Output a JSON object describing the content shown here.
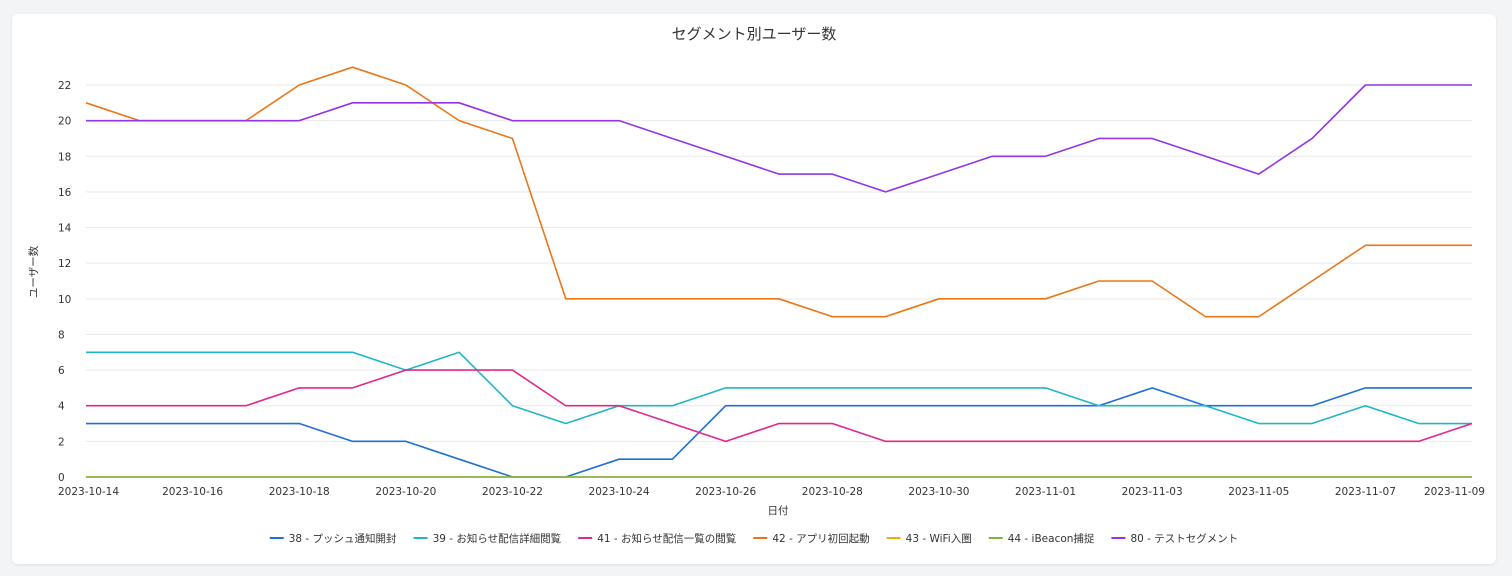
{
  "chart_data": {
    "type": "line",
    "title": "セグメント別ユーザー数",
    "xlabel": "日付",
    "ylabel": "ユーザー数",
    "ylim": [
      0,
      22
    ],
    "yticks": [
      0,
      2,
      4,
      6,
      8,
      10,
      12,
      14,
      16,
      18,
      20,
      22
    ],
    "x": [
      "2023-10-14",
      "2023-10-15",
      "2023-10-16",
      "2023-10-17",
      "2023-10-18",
      "2023-10-19",
      "2023-10-20",
      "2023-10-21",
      "2023-10-22",
      "2023-10-23",
      "2023-10-24",
      "2023-10-25",
      "2023-10-26",
      "2023-10-27",
      "2023-10-28",
      "2023-10-29",
      "2023-10-30",
      "2023-10-31",
      "2023-11-01",
      "2023-11-02",
      "2023-11-03",
      "2023-11-04",
      "2023-11-05",
      "2023-11-06",
      "2023-11-07",
      "2023-11-08",
      "2023-11-09"
    ],
    "xticks": [
      "2023-10-14",
      "2023-10-16",
      "2023-10-18",
      "2023-10-20",
      "2023-10-22",
      "2023-10-24",
      "2023-10-26",
      "2023-10-28",
      "2023-10-30",
      "2023-11-01",
      "2023-11-03",
      "2023-11-05",
      "2023-11-07",
      "2023-11-09"
    ],
    "legend_position": "bottom",
    "series": [
      {
        "name": "38 - プッシュ通知開封",
        "color": "#1f6fd6",
        "values": [
          3,
          3,
          3,
          3,
          3,
          2,
          2,
          1,
          0,
          0,
          1,
          1,
          4,
          4,
          4,
          4,
          4,
          4,
          4,
          4,
          5,
          4,
          4,
          4,
          5,
          5,
          5
        ]
      },
      {
        "name": "39 - お知らせ配信詳細閲覧",
        "color": "#1fb6c6",
        "values": [
          7,
          7,
          7,
          7,
          7,
          7,
          6,
          7,
          4,
          3,
          4,
          4,
          5,
          5,
          5,
          5,
          5,
          5,
          5,
          4,
          4,
          4,
          3,
          3,
          4,
          3,
          3
        ]
      },
      {
        "name": "41 - お知らせ配信一覧の閲覧",
        "color": "#e2278a",
        "values": [
          4,
          4,
          4,
          4,
          5,
          5,
          6,
          6,
          6,
          4,
          4,
          3,
          2,
          3,
          3,
          2,
          2,
          2,
          2,
          2,
          2,
          2,
          2,
          2,
          2,
          2,
          3
        ]
      },
      {
        "name": "42 - アプリ初回起動",
        "color": "#ec7616",
        "values": [
          21,
          20,
          20,
          20,
          22,
          23,
          22,
          20,
          19,
          10,
          10,
          10,
          10,
          10,
          9,
          9,
          10,
          10,
          10,
          11,
          11,
          9,
          9,
          11,
          13,
          13,
          13
        ]
      },
      {
        "name": "43 - WiFi入圏",
        "color": "#e8ae12",
        "values": [
          0,
          0,
          0,
          0,
          0,
          0,
          0,
          0,
          0,
          0,
          0,
          0,
          0,
          0,
          0,
          0,
          0,
          0,
          0,
          0,
          0,
          0,
          0,
          0,
          0,
          0,
          0
        ]
      },
      {
        "name": "44 - iBeacon捕捉",
        "color": "#7cb342",
        "values": [
          0,
          0,
          0,
          0,
          0,
          0,
          0,
          0,
          0,
          0,
          0,
          0,
          0,
          0,
          0,
          0,
          0,
          0,
          0,
          0,
          0,
          0,
          0,
          0,
          0,
          0,
          0
        ]
      },
      {
        "name": "80 - テストセグメント",
        "color": "#9333ea",
        "values": [
          20,
          20,
          20,
          20,
          20,
          21,
          21,
          21,
          20,
          20,
          20,
          19,
          18,
          17,
          17,
          16,
          17,
          18,
          18,
          19,
          19,
          18,
          17,
          19,
          22,
          22,
          22
        ]
      }
    ]
  }
}
